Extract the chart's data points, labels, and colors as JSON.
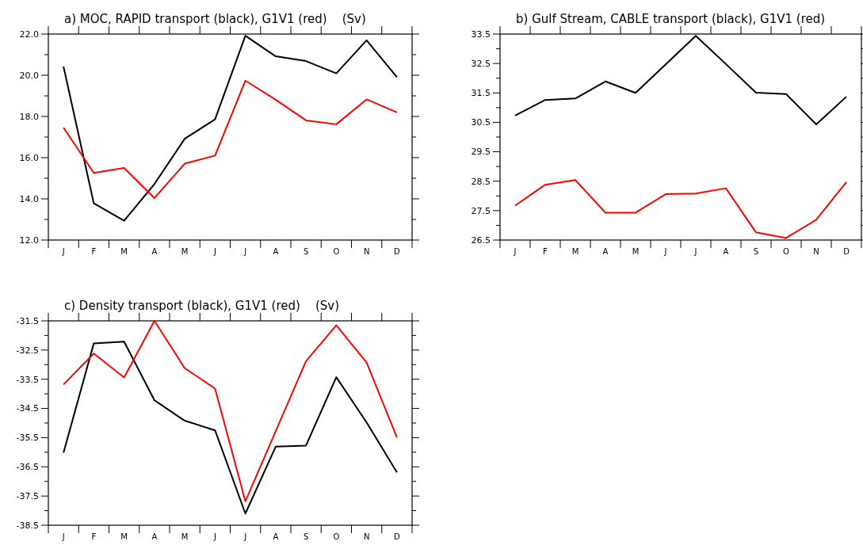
{
  "chart_data": [
    {
      "type": "line",
      "title": "a) MOC, RAPID transport (black), G1V1 (red)    (Sv)",
      "categories": [
        "J",
        "F",
        "M",
        "A",
        "M",
        "J",
        "J",
        "A",
        "S",
        "O",
        "N",
        "D"
      ],
      "series": [
        {
          "color": "#000000",
          "values": [
            20.42,
            13.78,
            12.94,
            14.72,
            16.92,
            17.86,
            21.92,
            20.92,
            20.69,
            20.09,
            21.7,
            19.91
          ]
        },
        {
          "color": "#ff0000",
          "values": [
            17.46,
            15.26,
            15.5,
            14.04,
            15.71,
            16.1,
            19.74,
            18.81,
            17.81,
            17.62,
            18.83,
            18.2
          ]
        }
      ],
      "ylim": [
        12,
        22
      ],
      "yticks": [
        {
          "value": 12,
          "label": "12.0"
        },
        {
          "value": 13,
          "label": null
        },
        {
          "value": 14,
          "label": "14.0"
        },
        {
          "value": 15,
          "label": null
        },
        {
          "value": 16,
          "label": "16.0"
        },
        {
          "value": 17,
          "label": null
        },
        {
          "value": 18,
          "label": "18.0"
        },
        {
          "value": 19,
          "label": null
        },
        {
          "value": 20,
          "label": "20.0"
        },
        {
          "value": 21,
          "label": null
        },
        {
          "value": 22,
          "label": "22.0"
        }
      ],
      "grid": false,
      "marker": "none",
      "line_style": "solid"
    },
    {
      "type": "line",
      "title": "b) Gulf Stream, CABLE transport (black), G1V1 (red)",
      "categories": [
        "J",
        "F",
        "M",
        "A",
        "M",
        "J",
        "J",
        "A",
        "S",
        "O",
        "N",
        "D"
      ],
      "series": [
        {
          "color": "#000000",
          "values": [
            30.73,
            31.26,
            31.31,
            31.89,
            31.5,
            32.47,
            33.44,
            32.48,
            31.51,
            31.46,
            30.43,
            31.37
          ]
        },
        {
          "color": "#ff0000",
          "values": [
            27.67,
            28.38,
            28.54,
            27.43,
            27.43,
            28.06,
            28.08,
            28.26,
            26.76,
            26.57,
            27.19,
            28.47
          ]
        }
      ],
      "ylim": [
        26.5,
        33.5
      ],
      "yticks": [
        26.5,
        {
          "value": 27,
          "label": null
        },
        27.5,
        {
          "value": 28,
          "label": null
        },
        28.5,
        {
          "value": 29,
          "label": null
        },
        29.5,
        {
          "value": 30,
          "label": null
        },
        30.5,
        {
          "value": 31,
          "label": null
        },
        31.5,
        {
          "value": 32,
          "label": null
        },
        32.5,
        {
          "value": 33,
          "label": null
        },
        33.5
      ],
      "grid": false,
      "marker": "none",
      "line_style": "solid"
    },
    {
      "type": "line",
      "title": "c) Density transport (black), G1V1 (red)    (Sv)",
      "categories": [
        "J",
        "F",
        "M",
        "A",
        "M",
        "J",
        "J",
        "A",
        "S",
        "O",
        "N",
        "D"
      ],
      "series": [
        {
          "color": "#000000",
          "values": [
            -36.02,
            -32.27,
            -32.21,
            -34.22,
            -34.92,
            -35.25,
            -38.1,
            -35.81,
            -35.77,
            -33.43,
            -34.98,
            -36.69
          ]
        },
        {
          "color": "#ff0000",
          "values": [
            -33.68,
            -32.62,
            -33.44,
            -31.5,
            -33.12,
            -33.82,
            -37.68,
            -35.28,
            -32.88,
            -31.65,
            -32.93,
            -35.49
          ]
        }
      ],
      "ylim": [
        -38.5,
        -31.5
      ],
      "yticks": [
        -38.5,
        {
          "value": -38,
          "label": null
        },
        -37.5,
        {
          "value": -37,
          "label": null
        },
        -36.5,
        {
          "value": -36,
          "label": null
        },
        -35.5,
        {
          "value": -35,
          "label": null
        },
        -34.5,
        {
          "value": -34,
          "label": null
        },
        -33.5,
        {
          "value": -33,
          "label": null
        },
        -32.5,
        {
          "value": -32,
          "label": null
        },
        -31.5
      ],
      "grid": false,
      "marker": "none",
      "line_style": "solid"
    }
  ]
}
